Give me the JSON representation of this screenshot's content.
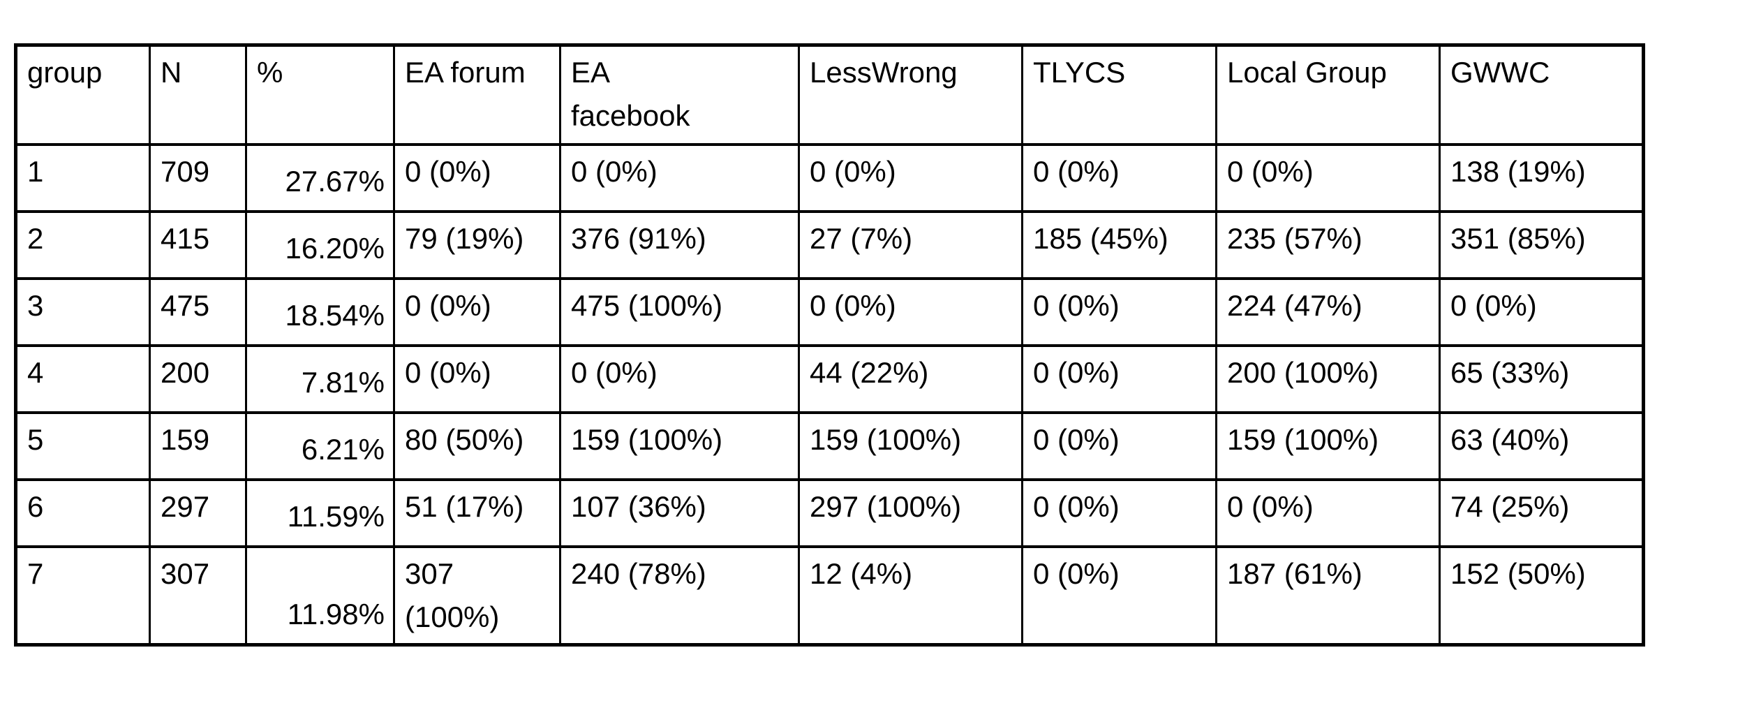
{
  "table": {
    "headers": [
      "group",
      "N",
      "%",
      "EA forum",
      "EA facebook",
      "LessWrong",
      "TLYCS",
      "Local Group",
      "GWWC"
    ],
    "rows": [
      [
        "1",
        "709",
        "27.67%",
        "0 (0%)",
        "0 (0%)",
        "0 (0%)",
        "0 (0%)",
        "0 (0%)",
        "138 (19%)"
      ],
      [
        "2",
        "415",
        "16.20%",
        "79 (19%)",
        "376 (91%)",
        "27 (7%)",
        "185 (45%)",
        "235 (57%)",
        "351 (85%)"
      ],
      [
        "3",
        "475",
        "18.54%",
        "0 (0%)",
        "475 (100%)",
        "0 (0%)",
        "0 (0%)",
        "224 (47%)",
        "0 (0%)"
      ],
      [
        "4",
        "200",
        "7.81%",
        "0 (0%)",
        "0 (0%)",
        "44 (22%)",
        "0 (0%)",
        "200 (100%)",
        "65 (33%)"
      ],
      [
        "5",
        "159",
        "6.21%",
        "80 (50%)",
        "159 (100%)",
        "159 (100%)",
        "0 (0%)",
        "159 (100%)",
        "63 (40%)"
      ],
      [
        "6",
        "297",
        "11.59%",
        "51 (17%)",
        "107 (36%)",
        "297 (100%)",
        "0 (0%)",
        "0 (0%)",
        "74 (25%)"
      ],
      [
        "7",
        "307",
        "11.98%",
        "307 (100%)",
        "240 (78%)",
        "12 (4%)",
        "0 (0%)",
        "187 (61%)",
        "152 (50%)"
      ]
    ]
  }
}
